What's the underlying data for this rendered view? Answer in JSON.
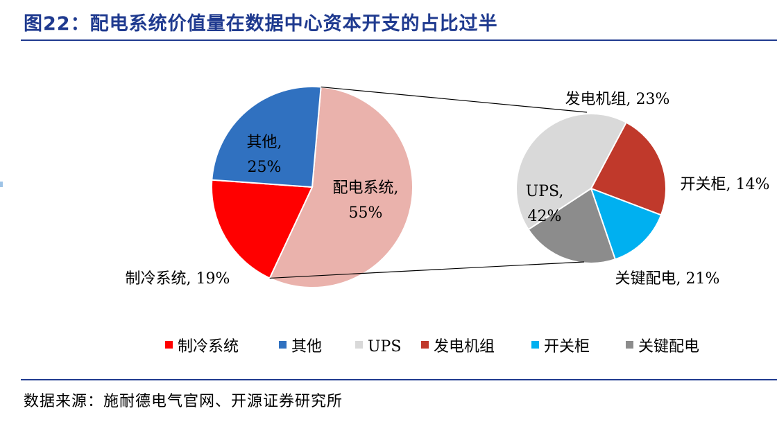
{
  "page": {
    "title": "图22：配电系统价值量在数据中心资本开支的占比过半",
    "source": "数据来源：施耐德电气官网、开源证券研究所"
  },
  "chart_data": [
    {
      "type": "pie",
      "slices": [
        {
          "label": "配电系统",
          "value": 55,
          "color": "#eab2ac",
          "label_text": [
            "配电系统,",
            "55%"
          ]
        },
        {
          "label": "制冷系统",
          "value": 19,
          "color": "#ff0000",
          "label_text": [
            "制冷系统, 19%"
          ]
        },
        {
          "label": "其他",
          "value": 25,
          "color": "#3071c0",
          "label_text": [
            "其他,",
            "25%"
          ]
        }
      ]
    },
    {
      "type": "pie",
      "slices": [
        {
          "label": "发电机组",
          "value": 23,
          "color": "#c0392b",
          "label_text": [
            "发电机组, 23%"
          ]
        },
        {
          "label": "开关柜",
          "value": 14,
          "color": "#00b0f0",
          "label_text": [
            "开关柜, 14%"
          ]
        },
        {
          "label": "关键配电",
          "value": 21,
          "color": "#8c8c8c",
          "label_text": [
            "关键配电, 21%"
          ]
        },
        {
          "label": "UPS",
          "value": 42,
          "color": "#d9d9d9",
          "label_text": [
            "UPS,",
            "42%"
          ]
        }
      ]
    }
  ],
  "legend": [
    {
      "label": "制冷系统",
      "color": "#ff0000"
    },
    {
      "label": "其他",
      "color": "#3071c0"
    },
    {
      "label": "UPS",
      "color": "#d9d9d9"
    },
    {
      "label": "发电机组",
      "color": "#c0392b"
    },
    {
      "label": "开关柜",
      "color": "#00b0f0"
    },
    {
      "label": "关键配电",
      "color": "#8c8c8c"
    }
  ]
}
